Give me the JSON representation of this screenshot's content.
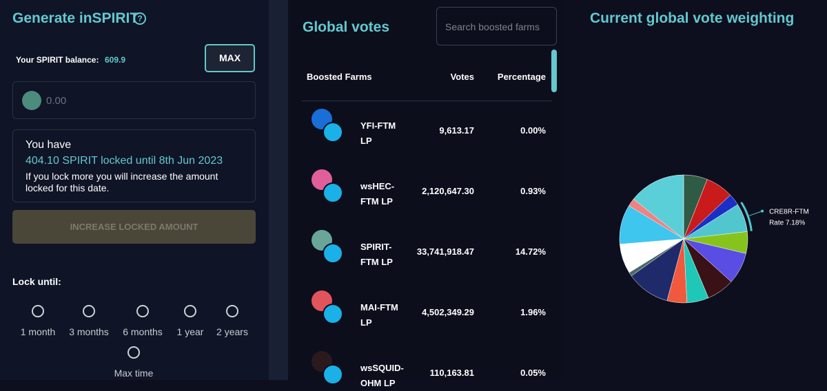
{
  "left": {
    "title": "Generate inSPIRIT",
    "balance_label": "Your SPIRIT balance:",
    "balance": "609.9",
    "max_button": "MAX",
    "input_placeholder": "0.00",
    "info": {
      "heading": "You have",
      "locked": "404.10 SPIRIT locked until 8th Jun 2023",
      "note": "If you lock more you will increase the amount locked for this date."
    },
    "increase_button": "INCREASE LOCKED AMOUNT",
    "lock_until": "Lock until:",
    "options": [
      "1 month",
      "3 months",
      "6 months",
      "1 year",
      "2 years",
      "Max time"
    ]
  },
  "middle": {
    "title": "Global votes",
    "search_placeholder": "Search boosted farms",
    "columns": [
      "Boosted Farms",
      "Votes",
      "Percentage"
    ],
    "rows": [
      [
        "YFI-FTM LP",
        "9,613.17",
        "0.00%"
      ],
      [
        "wsHEC-FTM LP",
        "2,120,647.30",
        "0.93%"
      ],
      [
        "SPIRIT-FTM LP",
        "33,741,918.47",
        "14.72%"
      ],
      [
        "MAI-FTM LP",
        "4,502,349.29",
        "1.96%"
      ],
      [
        "wsSQUID-OHM LP",
        "110,163.81",
        "0.05%"
      ]
    ]
  },
  "right": {
    "title": "Current global vote weighting",
    "chart_data": {
      "type": "pie",
      "slices": [
        {
          "name": null,
          "value": 6,
          "color": "#2f5a44"
        },
        {
          "name": null,
          "value": 7,
          "color": "#c91b1b"
        },
        {
          "name": null,
          "value": 3,
          "color": "#1b2fc6"
        },
        {
          "name": "CRE8R-FTM",
          "value": 7.18,
          "value_label": "Rate 7.18%",
          "color": "#52c6cf"
        },
        {
          "name": null,
          "value": 5.5,
          "color": "#86c41b"
        },
        {
          "name": null,
          "value": 8,
          "color": "#5a4de4"
        },
        {
          "name": null,
          "value": 7,
          "color": "#3a1117"
        },
        {
          "name": null,
          "value": 5.5,
          "color": "#1fc7b7"
        },
        {
          "name": null,
          "value": 5,
          "color": "#f0593d"
        },
        {
          "name": null,
          "value": 11,
          "color": "#1e2a69"
        },
        {
          "name": null,
          "value": 1,
          "color": "#4a6a6a"
        },
        {
          "name": null,
          "value": 7.5,
          "color": "#ffffff"
        },
        {
          "name": null,
          "value": 10,
          "color": "#3ec6ef"
        },
        {
          "name": null,
          "value": 2,
          "color": "#ef8282"
        },
        {
          "name": null,
          "value": 14.32,
          "color": "#5bcfd7"
        }
      ]
    }
  }
}
